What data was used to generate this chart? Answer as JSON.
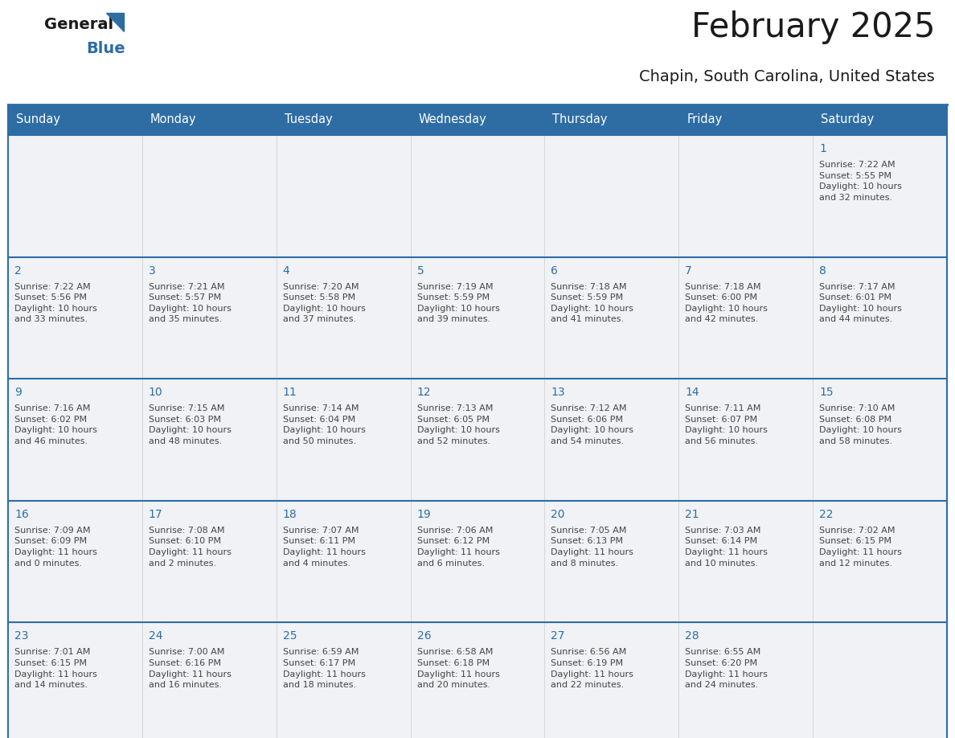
{
  "title": "February 2025",
  "subtitle": "Chapin, South Carolina, United States",
  "days_of_week": [
    "Sunday",
    "Monday",
    "Tuesday",
    "Wednesday",
    "Thursday",
    "Friday",
    "Saturday"
  ],
  "header_bg": "#2e6da4",
  "header_text": "#ffffff",
  "cell_bg": "#f0f2f5",
  "cell_bg_empty": "#f0f2f5",
  "border_color": "#2e6da4",
  "row_sep_color": "#2e6da4",
  "day_number_color": "#2e6da4",
  "text_color": "#444444",
  "title_color": "#1a1a1a",
  "logo_general_color": "#1a1a1a",
  "logo_blue_color": "#2e6da4",
  "weeks": [
    [
      {
        "day": null,
        "info": null
      },
      {
        "day": null,
        "info": null
      },
      {
        "day": null,
        "info": null
      },
      {
        "day": null,
        "info": null
      },
      {
        "day": null,
        "info": null
      },
      {
        "day": null,
        "info": null
      },
      {
        "day": 1,
        "info": "Sunrise: 7:22 AM\nSunset: 5:55 PM\nDaylight: 10 hours\nand 32 minutes."
      }
    ],
    [
      {
        "day": 2,
        "info": "Sunrise: 7:22 AM\nSunset: 5:56 PM\nDaylight: 10 hours\nand 33 minutes."
      },
      {
        "day": 3,
        "info": "Sunrise: 7:21 AM\nSunset: 5:57 PM\nDaylight: 10 hours\nand 35 minutes."
      },
      {
        "day": 4,
        "info": "Sunrise: 7:20 AM\nSunset: 5:58 PM\nDaylight: 10 hours\nand 37 minutes."
      },
      {
        "day": 5,
        "info": "Sunrise: 7:19 AM\nSunset: 5:59 PM\nDaylight: 10 hours\nand 39 minutes."
      },
      {
        "day": 6,
        "info": "Sunrise: 7:18 AM\nSunset: 5:59 PM\nDaylight: 10 hours\nand 41 minutes."
      },
      {
        "day": 7,
        "info": "Sunrise: 7:18 AM\nSunset: 6:00 PM\nDaylight: 10 hours\nand 42 minutes."
      },
      {
        "day": 8,
        "info": "Sunrise: 7:17 AM\nSunset: 6:01 PM\nDaylight: 10 hours\nand 44 minutes."
      }
    ],
    [
      {
        "day": 9,
        "info": "Sunrise: 7:16 AM\nSunset: 6:02 PM\nDaylight: 10 hours\nand 46 minutes."
      },
      {
        "day": 10,
        "info": "Sunrise: 7:15 AM\nSunset: 6:03 PM\nDaylight: 10 hours\nand 48 minutes."
      },
      {
        "day": 11,
        "info": "Sunrise: 7:14 AM\nSunset: 6:04 PM\nDaylight: 10 hours\nand 50 minutes."
      },
      {
        "day": 12,
        "info": "Sunrise: 7:13 AM\nSunset: 6:05 PM\nDaylight: 10 hours\nand 52 minutes."
      },
      {
        "day": 13,
        "info": "Sunrise: 7:12 AM\nSunset: 6:06 PM\nDaylight: 10 hours\nand 54 minutes."
      },
      {
        "day": 14,
        "info": "Sunrise: 7:11 AM\nSunset: 6:07 PM\nDaylight: 10 hours\nand 56 minutes."
      },
      {
        "day": 15,
        "info": "Sunrise: 7:10 AM\nSunset: 6:08 PM\nDaylight: 10 hours\nand 58 minutes."
      }
    ],
    [
      {
        "day": 16,
        "info": "Sunrise: 7:09 AM\nSunset: 6:09 PM\nDaylight: 11 hours\nand 0 minutes."
      },
      {
        "day": 17,
        "info": "Sunrise: 7:08 AM\nSunset: 6:10 PM\nDaylight: 11 hours\nand 2 minutes."
      },
      {
        "day": 18,
        "info": "Sunrise: 7:07 AM\nSunset: 6:11 PM\nDaylight: 11 hours\nand 4 minutes."
      },
      {
        "day": 19,
        "info": "Sunrise: 7:06 AM\nSunset: 6:12 PM\nDaylight: 11 hours\nand 6 minutes."
      },
      {
        "day": 20,
        "info": "Sunrise: 7:05 AM\nSunset: 6:13 PM\nDaylight: 11 hours\nand 8 minutes."
      },
      {
        "day": 21,
        "info": "Sunrise: 7:03 AM\nSunset: 6:14 PM\nDaylight: 11 hours\nand 10 minutes."
      },
      {
        "day": 22,
        "info": "Sunrise: 7:02 AM\nSunset: 6:15 PM\nDaylight: 11 hours\nand 12 minutes."
      }
    ],
    [
      {
        "day": 23,
        "info": "Sunrise: 7:01 AM\nSunset: 6:15 PM\nDaylight: 11 hours\nand 14 minutes."
      },
      {
        "day": 24,
        "info": "Sunrise: 7:00 AM\nSunset: 6:16 PM\nDaylight: 11 hours\nand 16 minutes."
      },
      {
        "day": 25,
        "info": "Sunrise: 6:59 AM\nSunset: 6:17 PM\nDaylight: 11 hours\nand 18 minutes."
      },
      {
        "day": 26,
        "info": "Sunrise: 6:58 AM\nSunset: 6:18 PM\nDaylight: 11 hours\nand 20 minutes."
      },
      {
        "day": 27,
        "info": "Sunrise: 6:56 AM\nSunset: 6:19 PM\nDaylight: 11 hours\nand 22 minutes."
      },
      {
        "day": 28,
        "info": "Sunrise: 6:55 AM\nSunset: 6:20 PM\nDaylight: 11 hours\nand 24 minutes."
      },
      {
        "day": null,
        "info": null
      }
    ]
  ]
}
